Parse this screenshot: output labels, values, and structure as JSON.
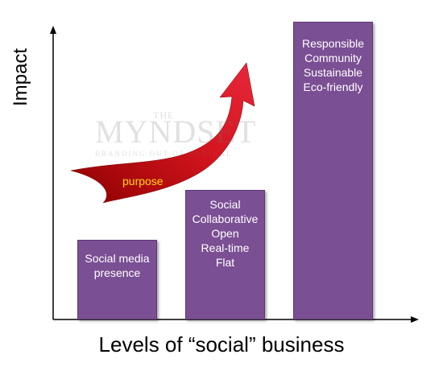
{
  "axes": {
    "y_label": "Impact",
    "x_label": "Levels of “social” business"
  },
  "bars": [
    {
      "level": 1,
      "lines": [
        "Social media",
        "presence"
      ]
    },
    {
      "level": 2,
      "lines": [
        "Social",
        "Collaborative",
        "Open",
        "Real-time",
        "Flat"
      ]
    },
    {
      "level": 3,
      "lines": [
        "Responsible",
        "Community",
        "Sustainable",
        "Eco-friendly"
      ]
    }
  ],
  "arrow": {
    "label": "purpose",
    "color": "#c8101e",
    "label_color": "#ffd700"
  },
  "watermark": {
    "small": "THE",
    "main": "MYNDSET",
    "sub": "BRANDING OUT OF ORDINAL"
  },
  "colors": {
    "bar_fill": "#7b4f93",
    "axis": "#000000"
  }
}
